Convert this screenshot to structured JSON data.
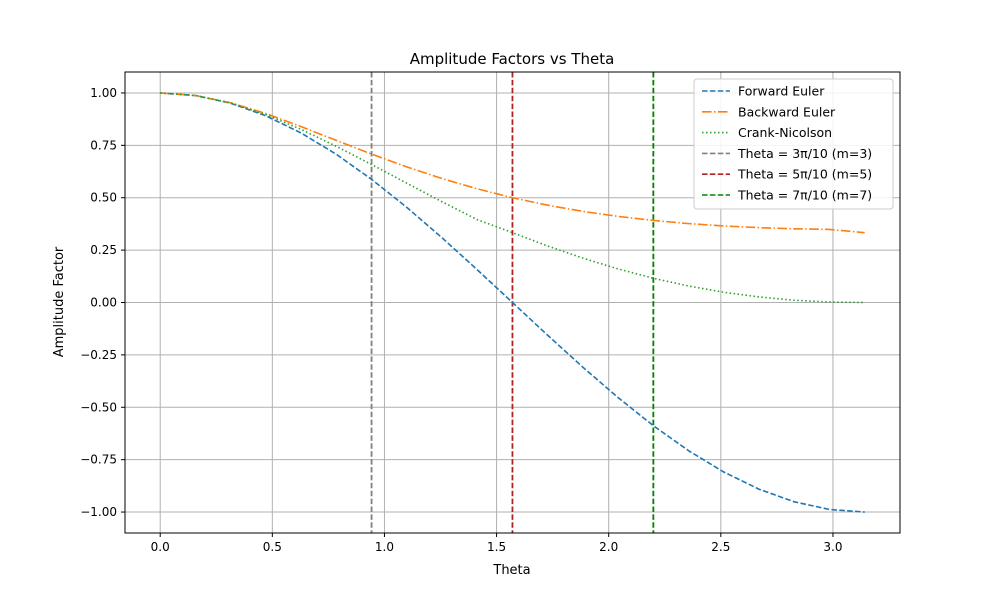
{
  "chart_data": {
    "type": "line",
    "title": "Amplitude Factors vs Theta",
    "xlabel": "Theta",
    "ylabel": "Amplitude Factor",
    "xlim": [
      -0.157,
      3.299
    ],
    "ylim": [
      -1.1,
      1.1
    ],
    "xticks": [
      0.0,
      0.5,
      1.0,
      1.5,
      2.0,
      2.5,
      3.0
    ],
    "xtick_labels": [
      "0.0",
      "0.5",
      "1.0",
      "1.5",
      "2.0",
      "2.5",
      "3.0"
    ],
    "yticks": [
      1.0,
      0.75,
      0.5,
      0.25,
      0.0,
      -0.25,
      -0.5,
      -0.75,
      -1.0
    ],
    "ytick_labels": [
      "1.00",
      "0.75",
      "0.50",
      "0.25",
      "0.00",
      "−0.25",
      "−0.50",
      "−0.75",
      "−1.00"
    ],
    "grid": true,
    "legend_position": "top-right",
    "x": [
      0.0,
      0.1571,
      0.3142,
      0.4712,
      0.6283,
      0.7854,
      0.9425,
      1.0996,
      1.2566,
      1.4137,
      1.5708,
      1.7279,
      1.885,
      2.042,
      2.1991,
      2.3562,
      2.5133,
      2.6704,
      2.8274,
      2.9845,
      3.1416
    ],
    "series": [
      {
        "name": "Forward Euler",
        "color": "#1f77b4",
        "dash": "dashed",
        "values": [
          1.0,
          0.9877,
          0.9511,
          0.891,
          0.809,
          0.7071,
          0.5878,
          0.454,
          0.309,
          0.1564,
          0.0,
          -0.1564,
          -0.309,
          -0.454,
          -0.5878,
          -0.7071,
          -0.809,
          -0.891,
          -0.9511,
          -0.9877,
          -1.0
        ]
      },
      {
        "name": "Backward Euler",
        "color": "#ff7f0e",
        "dash": "dashdot",
        "values": [
          1.0,
          0.9879,
          0.9533,
          0.9017,
          0.8396,
          0.7735,
          0.7082,
          0.6472,
          0.5914,
          0.5424,
          0.5,
          0.4643,
          0.4348,
          0.4108,
          0.3915,
          0.3765,
          0.3653,
          0.3571,
          0.3518,
          0.3487,
          0.3333
        ]
      },
      {
        "name": "Crank-Nicolson",
        "color": "#2ca02c",
        "dash": "dotted",
        "values": [
          1.0,
          0.9878,
          0.9521,
          0.8967,
          0.8262,
          0.7452,
          0.6585,
          0.5694,
          0.4809,
          0.3954,
          0.3333,
          0.2696,
          0.2118,
          0.1602,
          0.1157,
          0.0786,
          0.0489,
          0.0265,
          0.0107,
          0.0022,
          0.0
        ]
      }
    ],
    "vlines": [
      {
        "name": "Theta = 3π/10 (m=3)",
        "x": 0.9425,
        "color": "#808080"
      },
      {
        "name": "Theta = 5π/10 (m=5)",
        "x": 1.5708,
        "color": "#b22222"
      },
      {
        "name": "Theta = 7π/10 (m=7)",
        "x": 2.1991,
        "color": "#008000"
      }
    ]
  }
}
